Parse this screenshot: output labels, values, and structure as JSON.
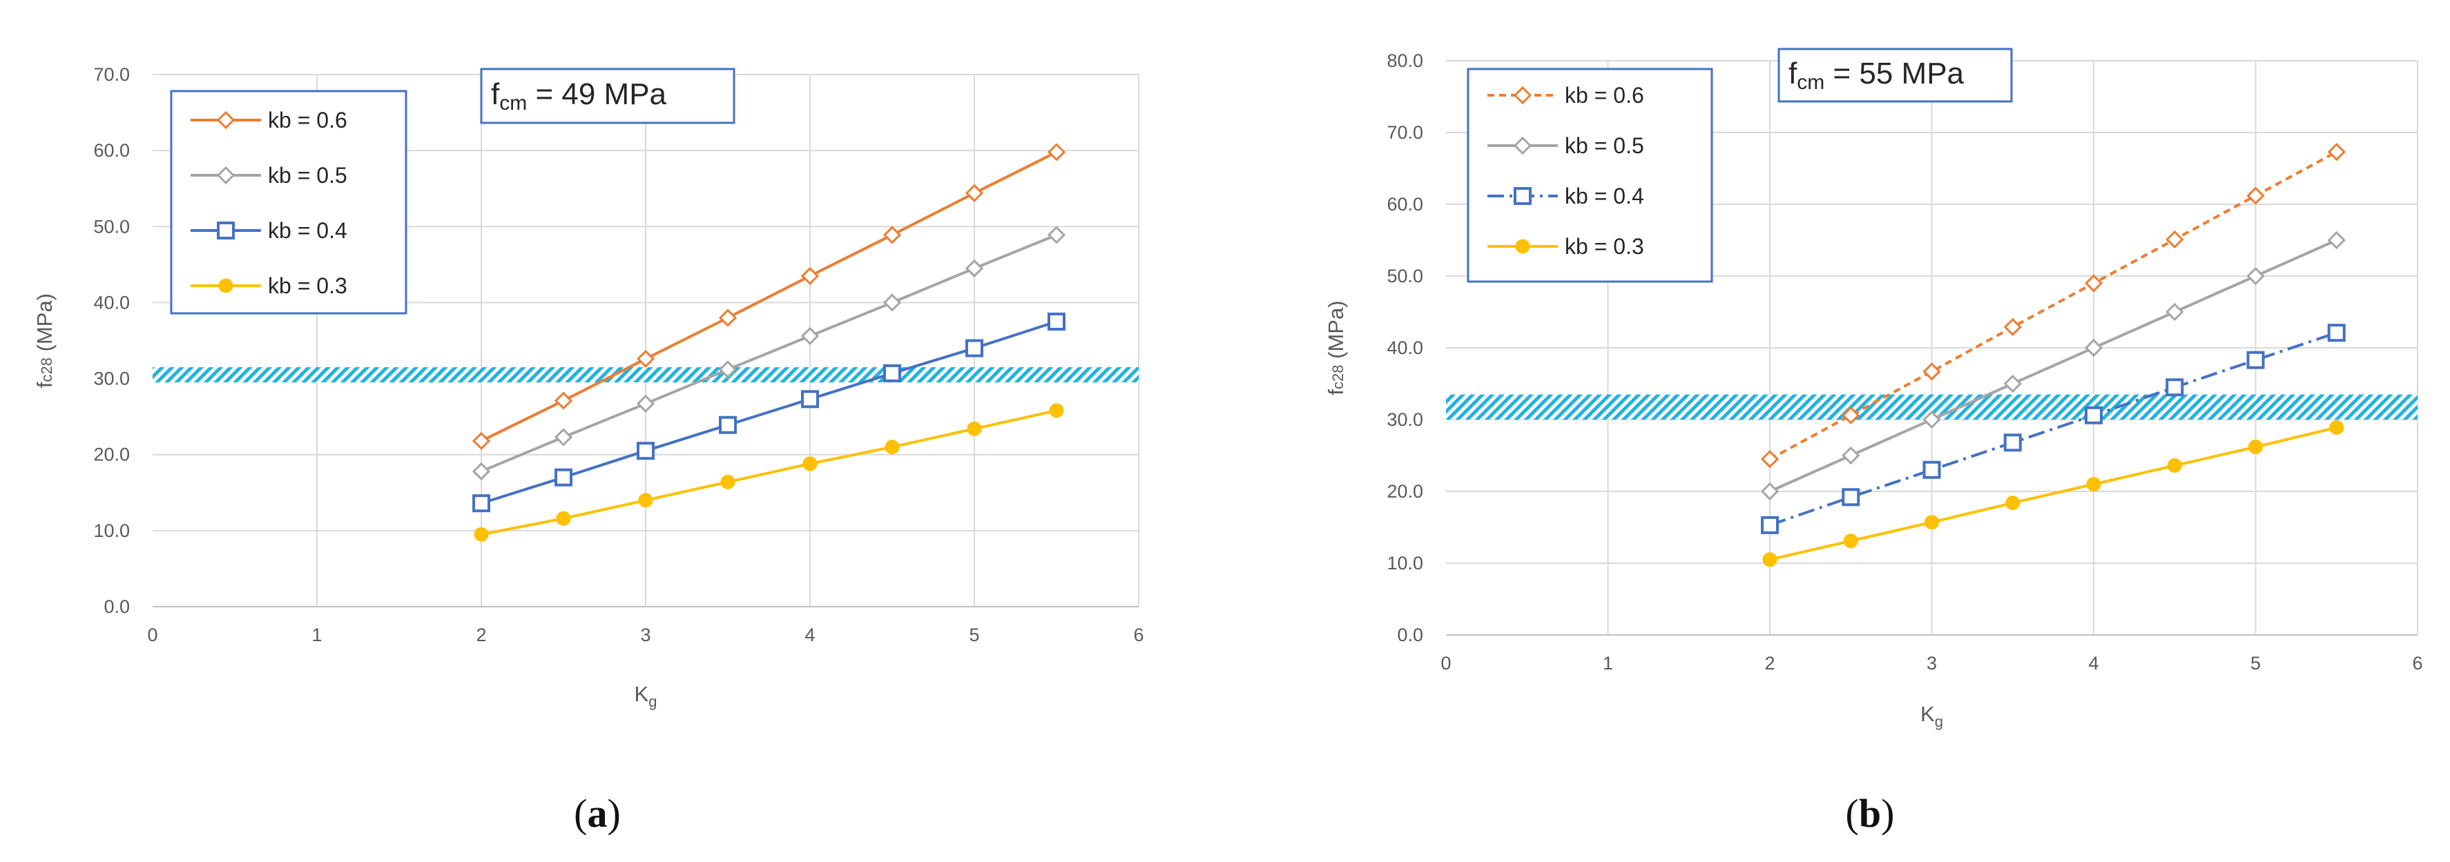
{
  "colors": {
    "band": "#21b2e0",
    "grid": "#d9d9d9",
    "axis": "#bfbfbf",
    "box": "#4472c4"
  },
  "chart_data": [
    {
      "type": "line",
      "panel": "(a)",
      "panel_letter": "a",
      "annotation": {
        "prefix": "f",
        "sub": "cm",
        "suffix": " = 49 MPa"
      },
      "xlabel": {
        "main": "K",
        "sub": "g"
      },
      "ylabel": {
        "main": "f",
        "sub": "c28",
        "suffix": " (MPa)"
      },
      "xlim": [
        0,
        6
      ],
      "ylim": [
        0,
        70
      ],
      "xticks": [
        "0",
        "1",
        "2",
        "3",
        "4",
        "5",
        "6"
      ],
      "yticks": [
        "0.0",
        "10.0",
        "20.0",
        "30.0",
        "40.0",
        "50.0",
        "60.0",
        "70.0"
      ],
      "band": [
        29.5,
        31.5
      ],
      "legend_position": "top-left",
      "x": [
        2,
        2.5,
        3,
        3.5,
        4,
        4.5,
        5,
        5.5
      ],
      "series": [
        {
          "name": "kb = 0.6",
          "color": "#ed7d31",
          "marker": "diamond",
          "dash": "",
          "values": [
            21.8,
            27.1,
            32.6,
            38.0,
            43.5,
            48.9,
            54.4,
            59.8
          ]
        },
        {
          "name": "kb = 0.5",
          "color": "#a5a5a5",
          "marker": "diamond",
          "dash": "",
          "values": [
            17.8,
            22.3,
            26.7,
            31.2,
            35.6,
            40.0,
            44.5,
            48.9
          ]
        },
        {
          "name": "kb = 0.4",
          "color": "#4472c4",
          "marker": "square",
          "dash": "",
          "values": [
            13.6,
            17.0,
            20.5,
            23.9,
            27.3,
            30.7,
            34.0,
            37.5
          ]
        },
        {
          "name": "kb = 0.3",
          "color": "#ffc000",
          "marker": "circle",
          "dash": "",
          "values": [
            9.5,
            11.6,
            14.0,
            16.4,
            18.8,
            21.0,
            23.4,
            25.8
          ]
        }
      ]
    },
    {
      "type": "line",
      "panel": "(b)",
      "panel_letter": "b",
      "annotation": {
        "prefix": "f",
        "sub": "cm",
        "suffix": " = 55 MPa"
      },
      "xlabel": {
        "main": "K",
        "sub": "g"
      },
      "ylabel": {
        "main": "f",
        "sub": "c28",
        "suffix": " (MPa)"
      },
      "xlim": [
        0,
        6
      ],
      "ylim": [
        0,
        80
      ],
      "xticks": [
        "0",
        "1",
        "2",
        "3",
        "4",
        "5",
        "6"
      ],
      "yticks": [
        "0.0",
        "10.0",
        "20.0",
        "30.0",
        "40.0",
        "50.0",
        "60.0",
        "70.0",
        "80.0"
      ],
      "band": [
        30,
        33.5
      ],
      "legend_position": "top-left",
      "x": [
        2,
        2.5,
        3,
        3.5,
        4,
        4.5,
        5,
        5.5
      ],
      "series": [
        {
          "name": "kb = 0.6",
          "color": "#ed7d31",
          "marker": "diamond",
          "dash": "10,7",
          "values": [
            24.5,
            30.6,
            36.7,
            42.9,
            49.0,
            55.1,
            61.2,
            67.3
          ]
        },
        {
          "name": "kb = 0.5",
          "color": "#a5a5a5",
          "marker": "diamond",
          "dash": "",
          "values": [
            20.0,
            25.0,
            30.0,
            35.0,
            40.0,
            45.0,
            50.0,
            55.0
          ]
        },
        {
          "name": "kb = 0.4",
          "color": "#4472c4",
          "marker": "square",
          "dash": "24,8,4,8",
          "values": [
            15.3,
            19.2,
            23.0,
            26.8,
            30.6,
            34.5,
            38.3,
            42.1
          ]
        },
        {
          "name": "kb = 0.3",
          "color": "#ffc000",
          "marker": "circle",
          "dash": "",
          "values": [
            10.5,
            13.1,
            15.7,
            18.4,
            21.0,
            23.6,
            26.2,
            28.9
          ]
        }
      ]
    }
  ]
}
